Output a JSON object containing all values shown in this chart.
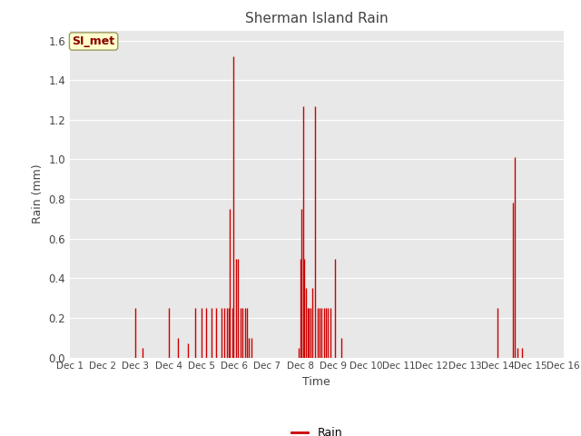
{
  "title": "Sherman Island Rain",
  "xlabel": "Time",
  "ylabel": "Rain (mm)",
  "legend_label": "Rain",
  "line_color": "#cc0000",
  "ylim": [
    0.0,
    1.65
  ],
  "yticks": [
    0.0,
    0.2,
    0.4,
    0.6,
    0.8,
    1.0,
    1.2,
    1.4,
    1.6
  ],
  "xtick_labels": [
    "Dec 1",
    "Dec 2",
    "Dec 3",
    "Dec 4",
    "Dec 5",
    "Dec 6",
    "Dec 7",
    "Dec 8",
    "Dec 9",
    "Dec 10",
    "Dec 11",
    "Dec 12",
    "Dec 13",
    "Dec 14",
    "Dec 15",
    "Dec 16"
  ],
  "fig_bg_color": "#ffffff",
  "plot_bg_color": "#e8e8e8",
  "grid_color": "#ffffff",
  "annotation_label": "SI_met",
  "annotation_text_color": "#8b0000",
  "annotation_bg_color": "#ffffcc",
  "annotation_border_color": "#999966",
  "rain_events": [
    {
      "x": 3.0,
      "peak": 0.25
    },
    {
      "x": 3.2,
      "peak": 0.05
    },
    {
      "x": 4.0,
      "peak": 0.25
    },
    {
      "x": 4.3,
      "peak": 0.1
    },
    {
      "x": 4.6,
      "peak": 0.07
    },
    {
      "x": 4.8,
      "peak": 0.25
    },
    {
      "x": 5.0,
      "peak": 0.25
    },
    {
      "x": 5.15,
      "peak": 0.25
    },
    {
      "x": 5.3,
      "peak": 0.25
    },
    {
      "x": 5.45,
      "peak": 0.25
    },
    {
      "x": 5.6,
      "peak": 0.25
    },
    {
      "x": 5.7,
      "peak": 0.25
    },
    {
      "x": 5.78,
      "peak": 0.25
    },
    {
      "x": 5.83,
      "peak": 0.25
    },
    {
      "x": 5.87,
      "peak": 0.75
    },
    {
      "x": 5.93,
      "peak": 0.25
    },
    {
      "x": 5.97,
      "peak": 1.52
    },
    {
      "x": 6.05,
      "peak": 0.5
    },
    {
      "x": 6.12,
      "peak": 0.5
    },
    {
      "x": 6.18,
      "peak": 0.25
    },
    {
      "x": 6.25,
      "peak": 0.25
    },
    {
      "x": 6.32,
      "peak": 0.25
    },
    {
      "x": 6.38,
      "peak": 0.25
    },
    {
      "x": 6.45,
      "peak": 0.1
    },
    {
      "x": 6.52,
      "peak": 0.1
    },
    {
      "x": 7.95,
      "peak": 0.05
    },
    {
      "x": 8.0,
      "peak": 0.5
    },
    {
      "x": 8.04,
      "peak": 0.75
    },
    {
      "x": 8.08,
      "peak": 1.27
    },
    {
      "x": 8.13,
      "peak": 0.5
    },
    {
      "x": 8.18,
      "peak": 0.35
    },
    {
      "x": 8.22,
      "peak": 0.25
    },
    {
      "x": 8.27,
      "peak": 0.25
    },
    {
      "x": 8.32,
      "peak": 0.25
    },
    {
      "x": 8.38,
      "peak": 0.35
    },
    {
      "x": 8.45,
      "peak": 1.27
    },
    {
      "x": 8.52,
      "peak": 0.25
    },
    {
      "x": 8.58,
      "peak": 0.25
    },
    {
      "x": 8.65,
      "peak": 0.25
    },
    {
      "x": 8.72,
      "peak": 0.25
    },
    {
      "x": 8.78,
      "peak": 0.25
    },
    {
      "x": 8.85,
      "peak": 0.25
    },
    {
      "x": 8.93,
      "peak": 0.25
    },
    {
      "x": 9.05,
      "peak": 0.5
    },
    {
      "x": 9.25,
      "peak": 0.1
    },
    {
      "x": 14.0,
      "peak": 0.25
    },
    {
      "x": 14.45,
      "peak": 0.78
    },
    {
      "x": 14.52,
      "peak": 1.01
    },
    {
      "x": 14.6,
      "peak": 0.05
    },
    {
      "x": 14.75,
      "peak": 0.05
    }
  ],
  "xlim": [
    1.0,
    16.0
  ],
  "xtick_positions": [
    1,
    2,
    3,
    4,
    5,
    6,
    7,
    8,
    9,
    10,
    11,
    12,
    13,
    14,
    15,
    16
  ]
}
